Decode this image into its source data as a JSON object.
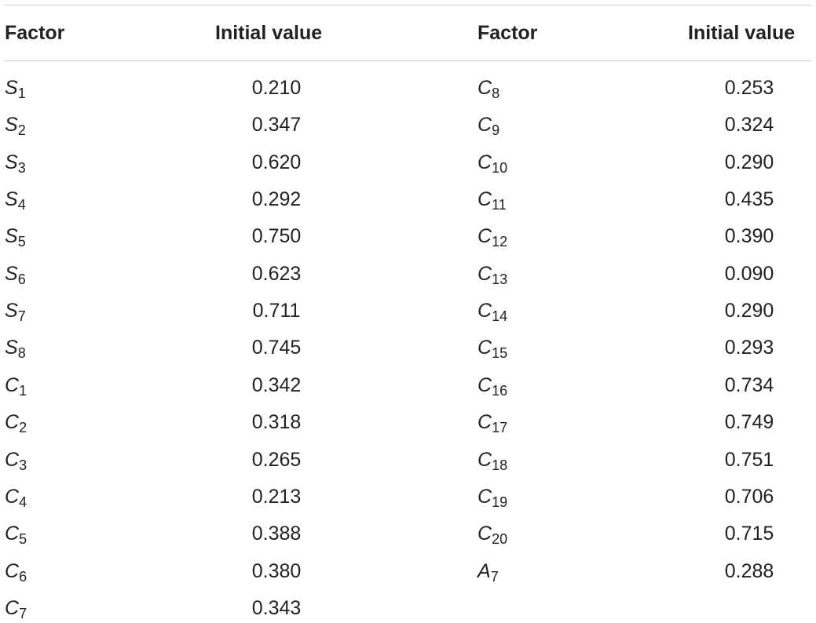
{
  "headers": {
    "factor_left": "Factor",
    "value_left": "Initial value",
    "factor_right": "Factor",
    "value_right": "Initial value"
  },
  "left_rows": [
    {
      "letter": "S",
      "sub": "1",
      "value": "0.210"
    },
    {
      "letter": "S",
      "sub": "2",
      "value": "0.347"
    },
    {
      "letter": "S",
      "sub": "3",
      "value": "0.620"
    },
    {
      "letter": "S",
      "sub": "4",
      "value": "0.292"
    },
    {
      "letter": "S",
      "sub": "5",
      "value": "0.750"
    },
    {
      "letter": "S",
      "sub": "6",
      "value": "0.623"
    },
    {
      "letter": "S",
      "sub": "7",
      "value": "0.711"
    },
    {
      "letter": "S",
      "sub": "8",
      "value": "0.745"
    },
    {
      "letter": "C",
      "sub": "1",
      "value": "0.342"
    },
    {
      "letter": "C",
      "sub": "2",
      "value": "0.318"
    },
    {
      "letter": "C",
      "sub": "3",
      "value": "0.265"
    },
    {
      "letter": "C",
      "sub": "4",
      "value": "0.213"
    },
    {
      "letter": "C",
      "sub": "5",
      "value": "0.388"
    },
    {
      "letter": "C",
      "sub": "6",
      "value": "0.380"
    },
    {
      "letter": "C",
      "sub": "7",
      "value": "0.343"
    }
  ],
  "right_rows": [
    {
      "letter": "C",
      "sub": "8",
      "value": "0.253"
    },
    {
      "letter": "C",
      "sub": "9",
      "value": "0.324"
    },
    {
      "letter": "C",
      "sub": "10",
      "value": "0.290"
    },
    {
      "letter": "C",
      "sub": "11",
      "value": "0.435"
    },
    {
      "letter": "C",
      "sub": "12",
      "value": "0.390"
    },
    {
      "letter": "C",
      "sub": "13",
      "value": "0.090"
    },
    {
      "letter": "C",
      "sub": "14",
      "value": "0.290"
    },
    {
      "letter": "C",
      "sub": "15",
      "value": "0.293"
    },
    {
      "letter": "C",
      "sub": "16",
      "value": "0.734"
    },
    {
      "letter": "C",
      "sub": "17",
      "value": "0.749"
    },
    {
      "letter": "C",
      "sub": "18",
      "value": "0.751"
    },
    {
      "letter": "C",
      "sub": "19",
      "value": "0.706"
    },
    {
      "letter": "C",
      "sub": "20",
      "value": "0.715"
    },
    {
      "letter": "A",
      "sub": "7",
      "value": "0.288"
    }
  ]
}
